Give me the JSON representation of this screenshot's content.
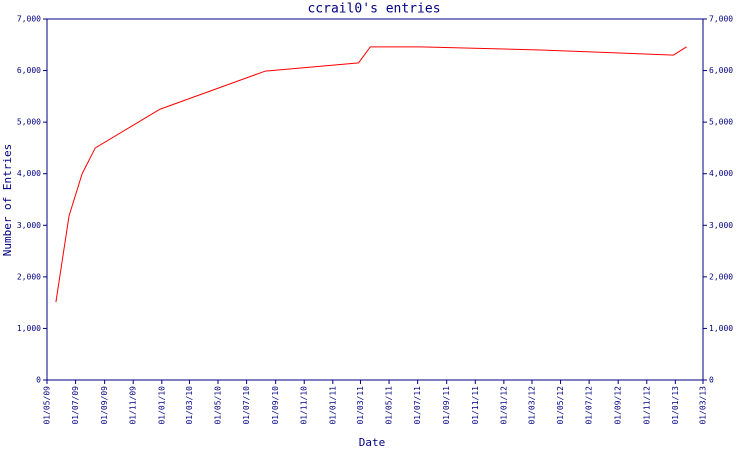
{
  "chart_data": {
    "type": "line",
    "title": "ccrail0's entries",
    "x_label": "Date",
    "y_label": "Number of Entries",
    "x": [
      "2009-05-20",
      "2009-06-17",
      "2009-07-15",
      "2009-08-12",
      "2009-12-28",
      "2010-08-10",
      "2011-02-25",
      "2011-03-22",
      "2011-07-07",
      "2012-03-20",
      "2012-12-28",
      "2013-01-25"
    ],
    "series": [
      {
        "name": "entries",
        "color": "#ff0000",
        "values": [
          1510,
          3180,
          4000,
          4500,
          5250,
          5990,
          6150,
          6460,
          6460,
          6400,
          6300,
          6460
        ]
      }
    ],
    "xlim": [
      "2009-05-01",
      "2013-03-01"
    ],
    "xticks": [
      {
        "value": "2009-05-01",
        "label": "01/05/09"
      },
      {
        "value": "2009-07-01",
        "label": "01/07/09"
      },
      {
        "value": "2009-09-01",
        "label": "01/09/09"
      },
      {
        "value": "2009-11-01",
        "label": "01/11/09"
      },
      {
        "value": "2010-01-01",
        "label": "01/01/10"
      },
      {
        "value": "2010-03-01",
        "label": "01/03/10"
      },
      {
        "value": "2010-05-01",
        "label": "01/05/10"
      },
      {
        "value": "2010-07-01",
        "label": "01/07/10"
      },
      {
        "value": "2010-09-01",
        "label": "01/09/10"
      },
      {
        "value": "2010-11-01",
        "label": "01/11/10"
      },
      {
        "value": "2011-01-01",
        "label": "01/01/11"
      },
      {
        "value": "2011-03-01",
        "label": "01/03/11"
      },
      {
        "value": "2011-05-01",
        "label": "01/05/11"
      },
      {
        "value": "2011-07-01",
        "label": "01/07/11"
      },
      {
        "value": "2011-09-01",
        "label": "01/09/11"
      },
      {
        "value": "2011-11-01",
        "label": "01/11/11"
      },
      {
        "value": "2012-01-01",
        "label": "01/01/12"
      },
      {
        "value": "2012-03-01",
        "label": "01/03/12"
      },
      {
        "value": "2012-05-01",
        "label": "01/05/12"
      },
      {
        "value": "2012-07-01",
        "label": "01/07/12"
      },
      {
        "value": "2012-09-01",
        "label": "01/09/12"
      },
      {
        "value": "2012-11-01",
        "label": "01/11/12"
      },
      {
        "value": "2013-01-01",
        "label": "01/01/13"
      },
      {
        "value": "2013-03-01",
        "label": "01/03/13"
      }
    ],
    "ylim": [
      0,
      7000
    ],
    "yticks": [
      0,
      {
        "value": 1000,
        "label": "1,000"
      },
      {
        "value": 2000,
        "label": "2,000"
      },
      {
        "value": 3000,
        "label": "3,000"
      },
      {
        "value": 4000,
        "label": "4,000"
      },
      {
        "value": 5000,
        "label": "5,000"
      },
      {
        "value": 6000,
        "label": "6,000"
      },
      {
        "value": 7000,
        "label": "7,000"
      }
    ],
    "axis_color": "#000080"
  }
}
